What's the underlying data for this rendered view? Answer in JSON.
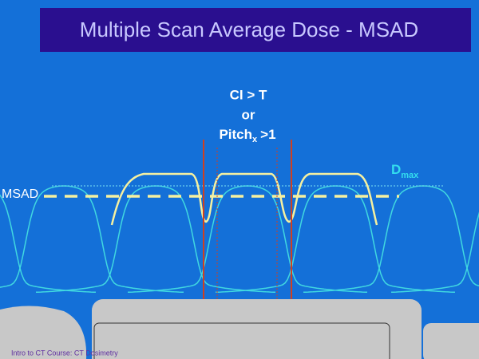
{
  "title": "Multiple Scan Average Dose - MSAD",
  "condition": {
    "line1": "CI > T",
    "line2": "or",
    "pitch": "Pitch",
    "pitch_sub": "x",
    "pitch_rest": ">1"
  },
  "dmax": {
    "label": "D",
    "sub": "max"
  },
  "msad_label": "MSAD",
  "footer": "Intro to CT Course: CT Dosimetry"
}
